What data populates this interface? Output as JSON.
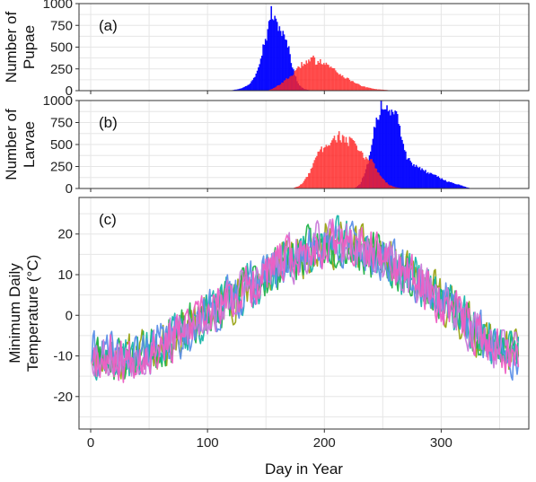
{
  "chart_data": [
    {
      "panel_label": "(a)",
      "type": "bar",
      "ylabel_lines": [
        "Number of",
        "Pupae"
      ],
      "xlim": [
        -10,
        375
      ],
      "ylim": [
        0,
        1000
      ],
      "yticks": [
        0,
        250,
        500,
        750,
        1000
      ],
      "grid": true,
      "legend": "none",
      "series": [
        {
          "color": "#0000ff",
          "x": [
            115,
            120,
            125,
            130,
            135,
            140,
            145,
            148,
            150,
            152,
            153,
            154,
            155,
            156,
            157,
            158,
            160,
            162,
            164,
            166,
            168,
            170,
            172,
            175,
            178,
            182,
            187,
            195
          ],
          "values": [
            0,
            5,
            15,
            35,
            70,
            170,
            380,
            560,
            620,
            740,
            880,
            920,
            860,
            830,
            800,
            780,
            750,
            700,
            640,
            580,
            520,
            420,
            280,
            150,
            60,
            20,
            5,
            0
          ]
        },
        {
          "color": "#ff2222",
          "x": [
            150,
            155,
            160,
            165,
            170,
            175,
            178,
            180,
            182,
            185,
            187,
            188,
            190,
            192,
            195,
            198,
            200,
            203,
            205,
            208,
            210,
            213,
            215,
            220,
            225,
            230,
            235,
            240,
            245,
            250,
            255,
            260,
            265
          ],
          "values": [
            0,
            20,
            60,
            110,
            160,
            220,
            270,
            300,
            320,
            340,
            330,
            360,
            380,
            320,
            350,
            330,
            310,
            300,
            260,
            250,
            220,
            190,
            170,
            130,
            100,
            60,
            40,
            25,
            15,
            10,
            5,
            3,
            0
          ]
        }
      ]
    },
    {
      "panel_label": "(b)",
      "type": "bar",
      "ylabel_lines": [
        "Number of",
        "Larvae"
      ],
      "xlim": [
        -10,
        375
      ],
      "ylim": [
        0,
        1000
      ],
      "yticks": [
        0,
        250,
        500,
        750,
        1000
      ],
      "grid": true,
      "legend": "none",
      "series": [
        {
          "color": "#0000ff",
          "x": [
            225,
            230,
            235,
            240,
            242,
            245,
            248,
            250,
            252,
            255,
            258,
            260,
            262,
            265,
            268,
            270,
            273,
            275,
            280,
            285,
            290,
            295,
            300,
            305,
            310,
            315,
            320,
            325
          ],
          "values": [
            0,
            50,
            200,
            450,
            650,
            800,
            960,
            950,
            920,
            900,
            880,
            870,
            820,
            600,
            420,
            360,
            330,
            280,
            240,
            200,
            170,
            140,
            110,
            80,
            60,
            40,
            20,
            0
          ]
        },
        {
          "color": "#ff2222",
          "x": [
            172,
            178,
            182,
            185,
            188,
            190,
            192,
            195,
            198,
            200,
            202,
            205,
            207,
            210,
            212,
            215,
            218,
            220,
            222,
            225,
            228,
            230,
            235,
            240,
            245,
            250,
            255,
            260,
            265,
            270
          ],
          "values": [
            0,
            30,
            80,
            140,
            220,
            300,
            360,
            410,
            450,
            500,
            520,
            540,
            560,
            570,
            600,
            560,
            580,
            520,
            560,
            500,
            450,
            400,
            350,
            320,
            200,
            100,
            40,
            15,
            5,
            0
          ]
        }
      ]
    },
    {
      "panel_label": "(c)",
      "type": "line",
      "xlabel": "Day in Year",
      "ylabel_lines": [
        "Minimum Daily",
        "Temperature (°C)"
      ],
      "xlim": [
        -10,
        375
      ],
      "ylim": [
        -28,
        29
      ],
      "xticks": [
        0,
        100,
        200,
        300
      ],
      "yticks": [
        -20,
        -10,
        0,
        10,
        20
      ],
      "grid": true,
      "legend": "none",
      "trend": {
        "x": [
          0,
          15,
          30,
          45,
          60,
          75,
          90,
          105,
          120,
          135,
          150,
          165,
          180,
          195,
          210,
          225,
          240,
          255,
          270,
          285,
          300,
          315,
          330,
          345,
          360,
          366
        ],
        "y": [
          -9,
          -10,
          -11,
          -9,
          -7,
          -5,
          -2,
          1,
          4,
          7,
          10,
          13,
          15,
          17,
          18,
          17,
          15,
          13,
          10,
          7,
          4,
          0,
          -4,
          -7,
          -9,
          -9
        ]
      },
      "noise_amplitude": 5,
      "series": [
        {
          "color": "#9aa316",
          "seed": 11
        },
        {
          "color": "#21b34a",
          "seed": 23
        },
        {
          "color": "#18b5a9",
          "seed": 37
        },
        {
          "color": "#5b8fe8",
          "seed": 41
        },
        {
          "color": "#c97bd9",
          "seed": 53
        },
        {
          "color": "#ee5fc4",
          "seed": 67
        }
      ]
    }
  ]
}
